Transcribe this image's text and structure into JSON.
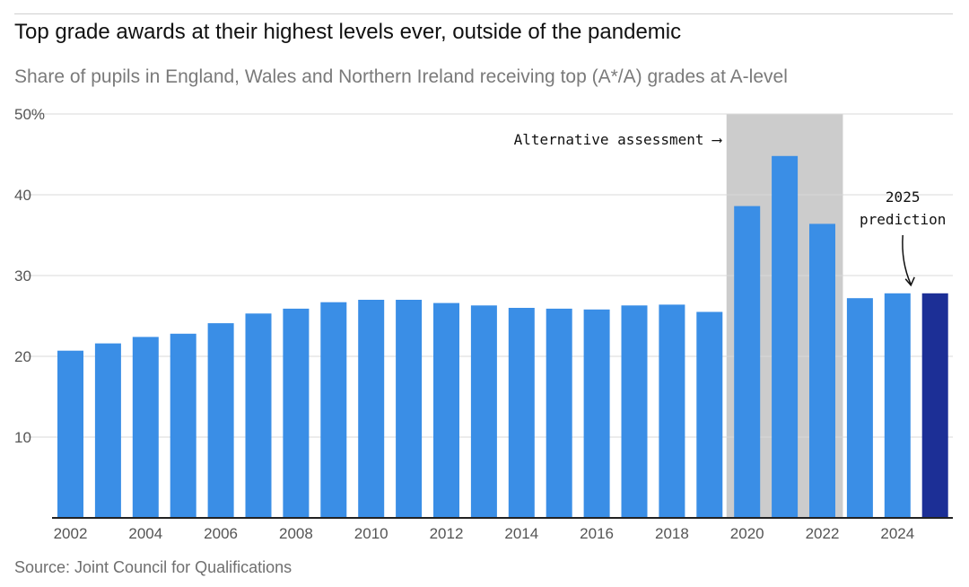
{
  "header": {
    "title": "Top grade awards at their highest levels ever, outside of the pandemic",
    "subtitle": "Share of pupils in England, Wales and Northern Ireland receiving top (A*/A) grades at A-level"
  },
  "footer": {
    "source": "Source: Joint Council for Qualifications"
  },
  "chart_data": {
    "type": "bar",
    "title": "Top grade awards at their highest levels ever, outside of the pandemic",
    "subtitle": "Share of pupils in England, Wales and Northern Ireland receiving top (A*/A) grades at A-level",
    "categories": [
      "2002",
      "2003",
      "2004",
      "2005",
      "2006",
      "2007",
      "2008",
      "2009",
      "2010",
      "2011",
      "2012",
      "2013",
      "2014",
      "2015",
      "2016",
      "2017",
      "2018",
      "2019",
      "2020",
      "2021",
      "2022",
      "2023",
      "2024",
      "2025"
    ],
    "values": [
      20.7,
      21.6,
      22.4,
      22.8,
      24.1,
      25.3,
      25.9,
      26.7,
      27.0,
      27.0,
      26.6,
      26.3,
      26.0,
      25.9,
      25.8,
      26.3,
      26.4,
      25.5,
      38.6,
      44.8,
      36.4,
      27.2,
      27.8,
      27.8
    ],
    "highlight_index": 23,
    "shaded_range": [
      "2020",
      "2022"
    ],
    "ylim": [
      0,
      50
    ],
    "yticks": [
      10,
      20,
      30,
      40,
      50
    ],
    "ytick_labels": [
      "10",
      "20",
      "30",
      "40",
      "50%"
    ],
    "xtick_labels": [
      "2002",
      "2004",
      "2006",
      "2008",
      "2010",
      "2012",
      "2014",
      "2016",
      "2018",
      "2020",
      "2022",
      "2024"
    ],
    "grid": true,
    "annotations": {
      "alternative_assessment": "Alternative assessment ⟶",
      "prediction_line1": "2025",
      "prediction_line2": "prediction"
    },
    "colors": {
      "bar": "#3a8ee6",
      "highlight_bar": "#1c2f96",
      "shade": "#cccccc",
      "grid": "#d9d9d9",
      "axis": "#222222"
    }
  }
}
